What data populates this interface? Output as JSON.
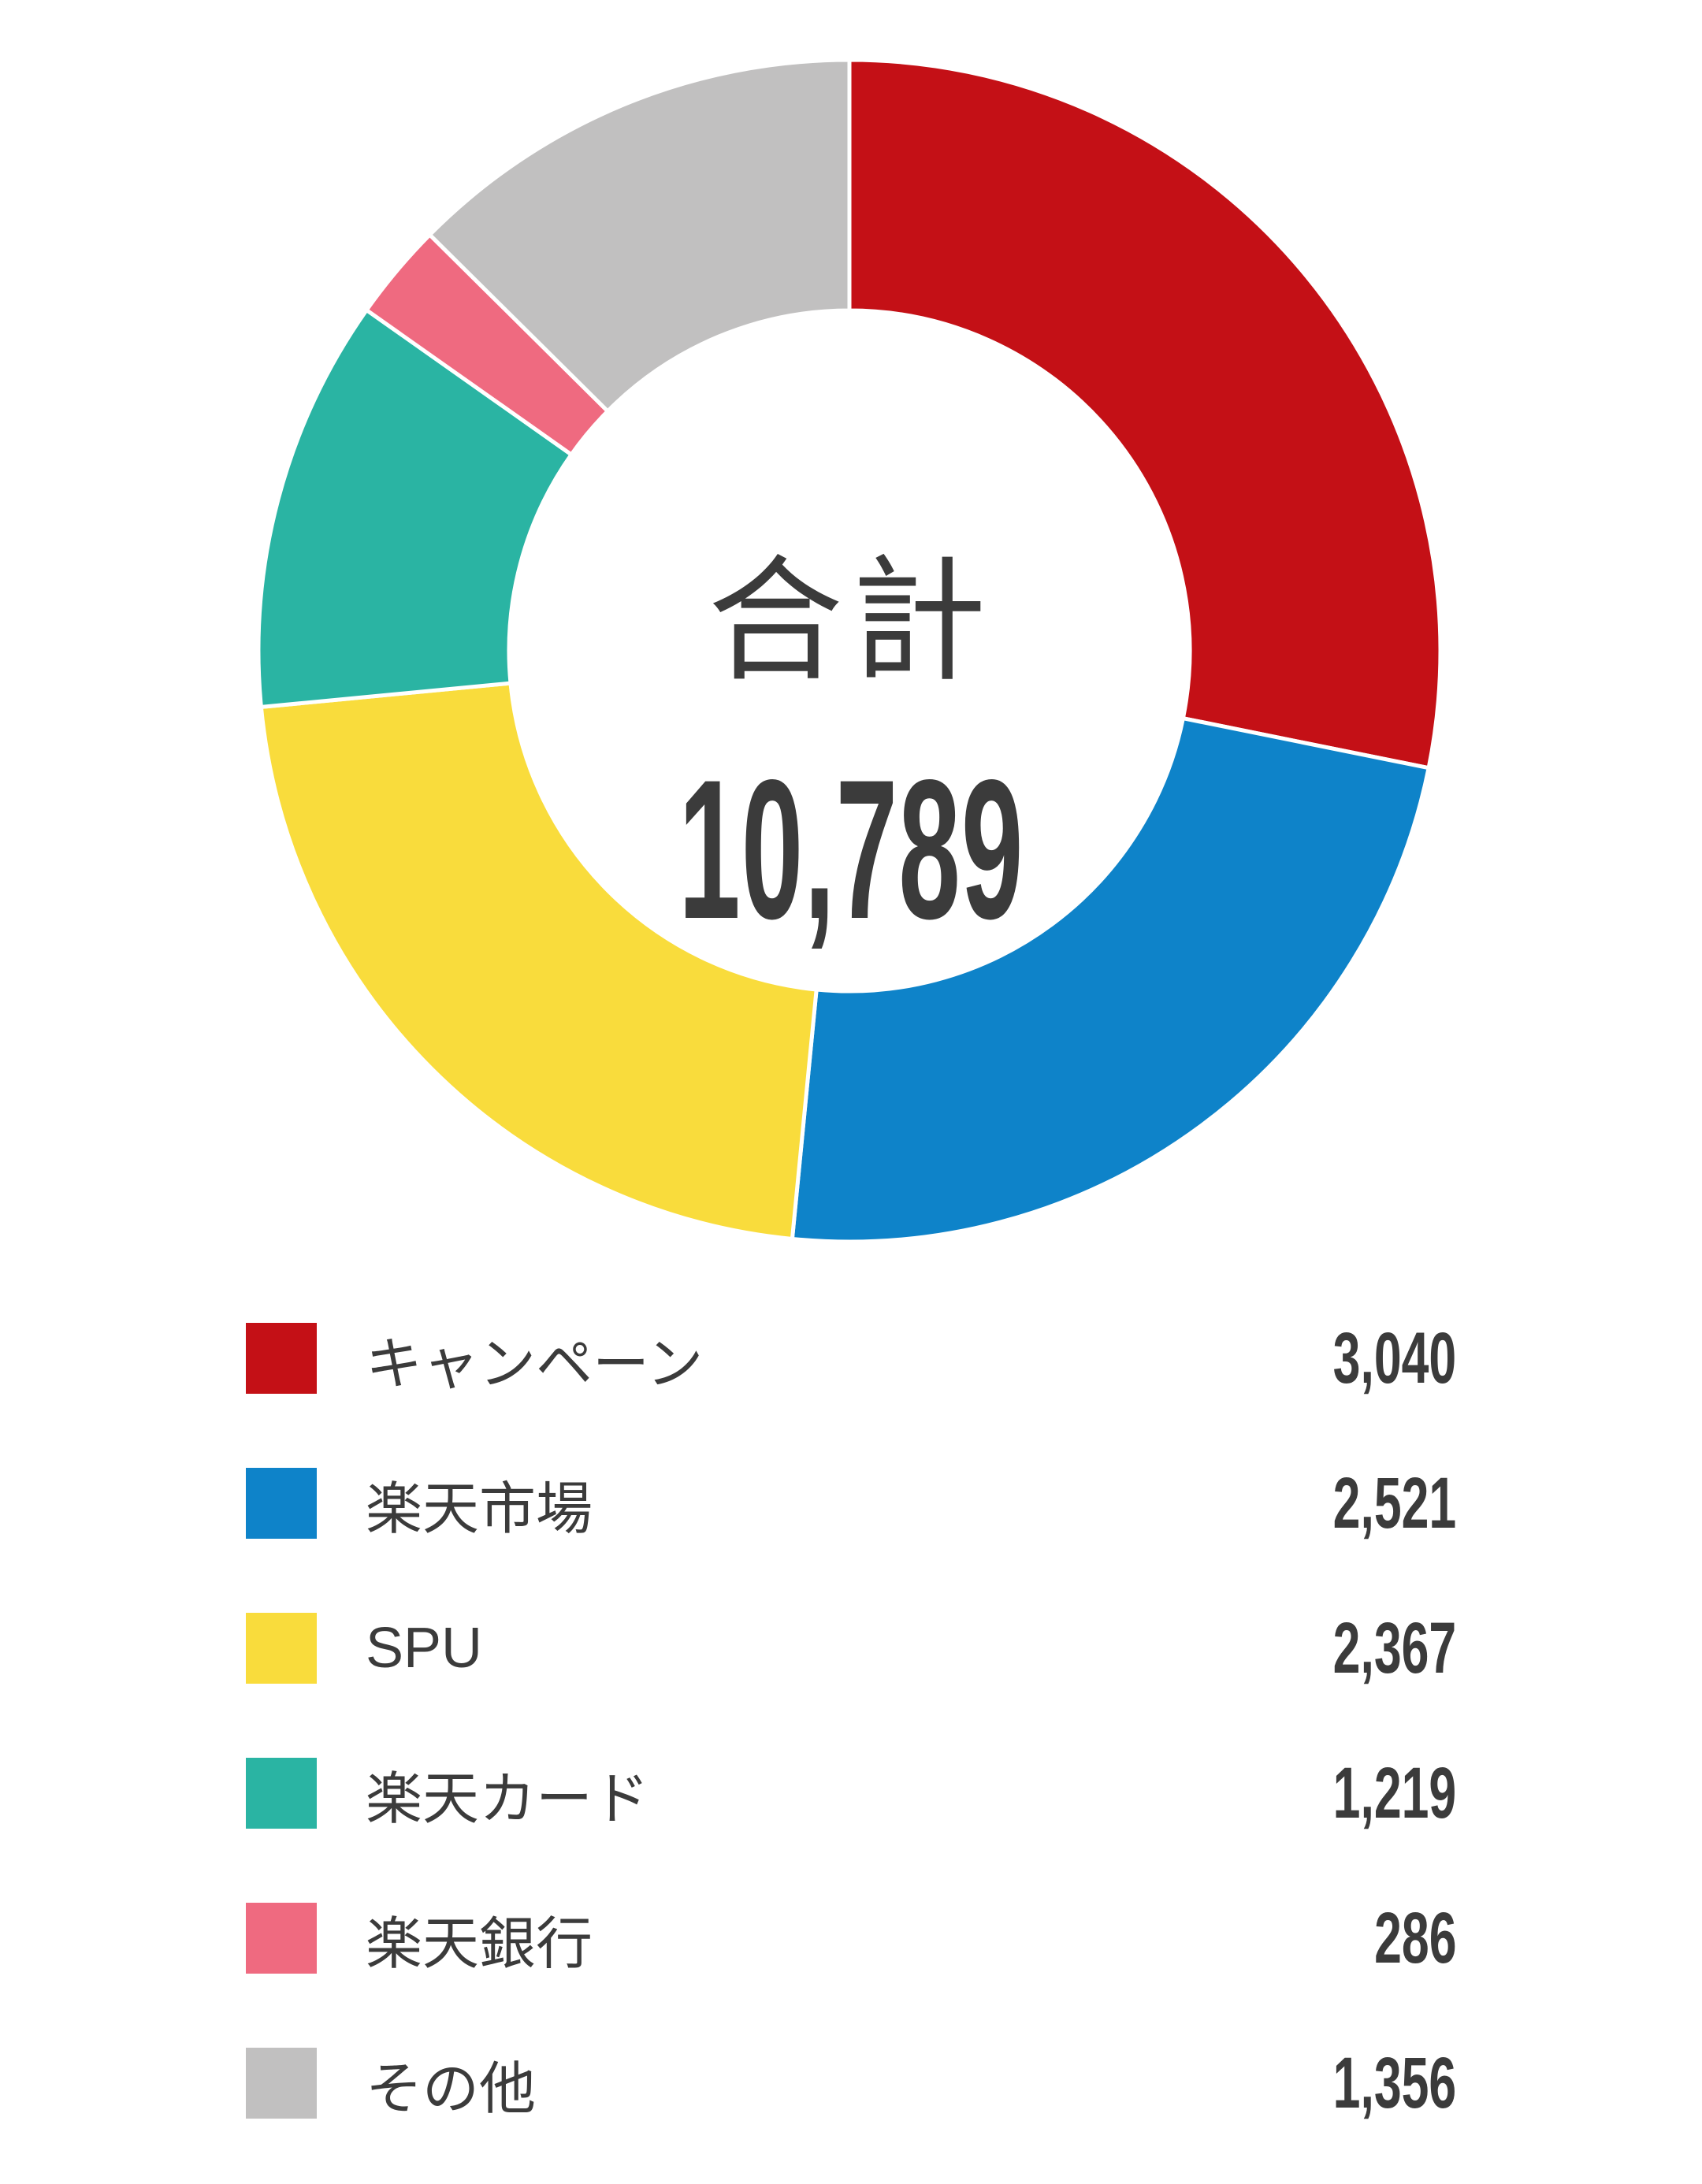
{
  "page": {
    "background": "#ffffff",
    "text_color": "#3b3b3b"
  },
  "chart_data": {
    "type": "pie",
    "donut": true,
    "start_angle_deg": 0,
    "direction": "clockwise",
    "legend_position": "bottom",
    "slice_border_color": "#ffffff",
    "center": {
      "label": "合計",
      "value": 10789,
      "value_display": "10,789"
    },
    "segments": [
      {
        "label": "キャンペーン",
        "value": 3040,
        "value_display": "3,040",
        "color": "#c41016"
      },
      {
        "label": "楽天市場",
        "value": 2521,
        "value_display": "2,521",
        "color": "#0e83c9"
      },
      {
        "label": "SPU",
        "value": 2367,
        "value_display": "2,367",
        "color": "#f9dc3c"
      },
      {
        "label": "楽天カード",
        "value": 1219,
        "value_display": "1,219",
        "color": "#2ab4a3"
      },
      {
        "label": "楽天銀行",
        "value": 286,
        "value_display": "286",
        "color": "#ef6a80"
      },
      {
        "label": "その他",
        "value": 1356,
        "value_display": "1,356",
        "color": "#c1c0c0"
      }
    ]
  }
}
